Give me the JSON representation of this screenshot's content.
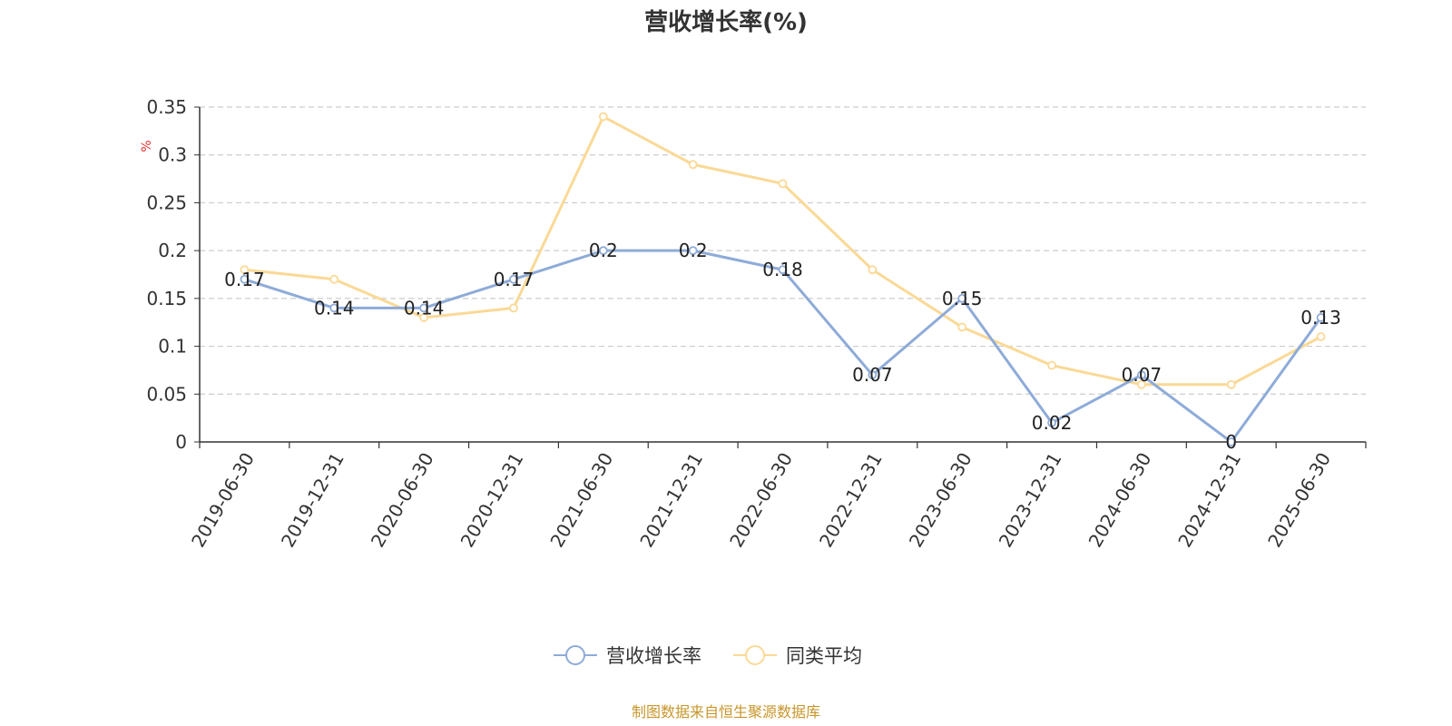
{
  "chart_data": {
    "type": "line",
    "title": "营收增长率(%)",
    "ylabel": "%",
    "ylim": [
      0,
      0.35
    ],
    "yticks": [
      "0",
      "0.05",
      "0.1",
      "0.15",
      "0.2",
      "0.25",
      "0.3",
      "0.35"
    ],
    "categories": [
      "2019-06-30",
      "2019-12-31",
      "2020-06-30",
      "2020-12-31",
      "2021-06-30",
      "2021-12-31",
      "2022-06-30",
      "2022-12-31",
      "2023-06-30",
      "2023-12-31",
      "2024-06-30",
      "2024-12-31",
      "2025-06-30"
    ],
    "series": [
      {
        "name": "营收增长率",
        "color": "#8eabd8",
        "values": [
          0.17,
          0.14,
          0.14,
          0.17,
          0.2,
          0.2,
          0.18,
          0.07,
          0.15,
          0.02,
          0.07,
          0,
          0.13
        ],
        "data_labels": [
          "0.17",
          "0.14",
          "0.14",
          "0.17",
          "0.2",
          "0.2",
          "0.18",
          "0.07",
          "0.15",
          "0.02",
          "0.07",
          "0",
          "0.13"
        ]
      },
      {
        "name": "同类平均",
        "color": "#fad996",
        "values": [
          0.18,
          0.17,
          0.13,
          0.14,
          0.34,
          0.29,
          0.27,
          0.18,
          0.12,
          0.08,
          0.06,
          0.06,
          0.11
        ]
      }
    ],
    "grid": true,
    "legend_position": "bottom-center",
    "source": "制图数据来自恒生聚源数据库"
  }
}
